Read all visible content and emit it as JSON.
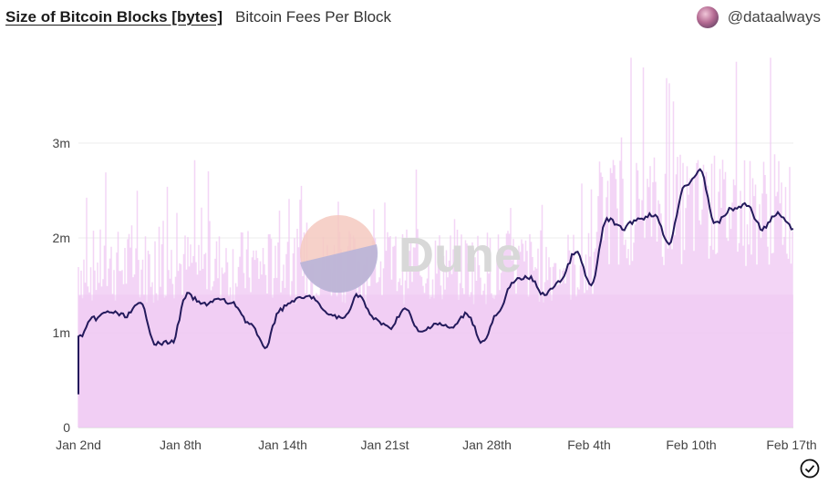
{
  "header": {
    "tab_active": "Size of Bitcoin Blocks [bytes]",
    "tab_other": "Bitcoin Fees Per Block",
    "author": "@dataalways"
  },
  "watermark": "Dune",
  "colors": {
    "line": "#241a5c",
    "fill": "#efc8f3",
    "grid": "#ececec",
    "axis_text": "#444444"
  },
  "chart_data": {
    "type": "area",
    "x_ticks": [
      "Jan 2nd",
      "Jan 8th",
      "Jan 14th",
      "Jan 21st",
      "Jan 28th",
      "Feb 4th",
      "Feb 10th",
      "Feb 17th"
    ],
    "y_ticks": [
      "0",
      "1m",
      "2m",
      "3m"
    ],
    "ylim": [
      0,
      3000000
    ],
    "series": [
      {
        "type": "line",
        "x": [
          "Jan 2nd",
          "Jan 2nd",
          "Jan 3rd",
          "Jan 4th",
          "Jan 5th",
          "Jan 6th",
          "Jan 7th",
          "Jan 8th",
          "Jan 9th",
          "Jan 10th",
          "Jan 11th",
          "Jan 12th",
          "Jan 13th",
          "Jan 14th",
          "Jan 15th",
          "Jan 16th",
          "Jan 17th",
          "Jan 18th",
          "Jan 19th",
          "Jan 20th",
          "Jan 21st",
          "Jan 22nd",
          "Jan 23rd",
          "Jan 24th",
          "Jan 25th",
          "Jan 26th",
          "Jan 27th",
          "Jan 28th",
          "Jan 29th",
          "Jan 30th",
          "Jan 31st",
          "Feb 1st",
          "Feb 2nd",
          "Feb 3rd",
          "Feb 4th",
          "Feb 5th",
          "Feb 6th",
          "Feb 7th",
          "Feb 8th",
          "Feb 9th",
          "Feb 10th",
          "Feb 11th",
          "Feb 12th",
          "Feb 13th",
          "Feb 14th",
          "Feb 15th",
          "Feb 16th",
          "Feb 17th"
        ],
        "values": [
          350000,
          950000,
          1150000,
          1220000,
          1180000,
          1300000,
          880000,
          900000,
          1400000,
          1300000,
          1350000,
          1300000,
          1100000,
          850000,
          1250000,
          1350000,
          1380000,
          1200000,
          1150000,
          1400000,
          1150000,
          1050000,
          1250000,
          1000000,
          1100000,
          1050000,
          1200000,
          900000,
          1200000,
          1550000,
          1580000,
          1400000,
          1550000,
          1850000,
          1500000,
          2200000,
          2100000,
          2200000,
          2250000,
          1950000,
          2550000,
          2700000,
          2150000,
          2300000,
          2350000,
          2100000,
          2250000,
          2100000
        ]
      },
      {
        "type": "area",
        "name": "",
        "note_values": "dense per-block spikes, mostly 1.5m-2.5m, up to ~4m after Feb 4th"
      }
    ]
  }
}
